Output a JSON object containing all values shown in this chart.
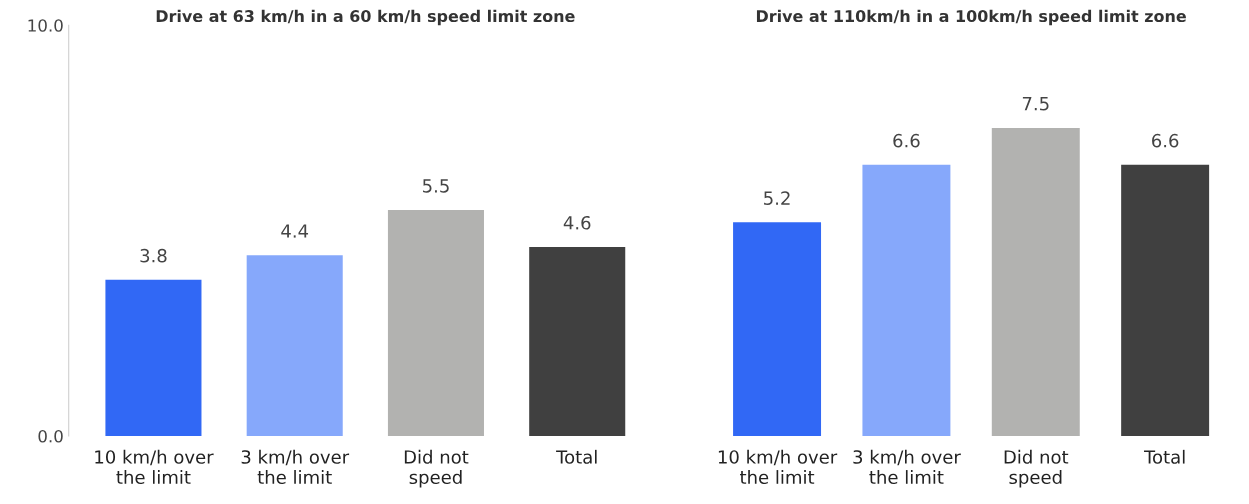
{
  "chart_data": [
    {
      "type": "bar",
      "title": "Drive at 63 km/h in a 60 km/h speed limit zone",
      "categories": [
        "10 km/h over\nthe limit",
        "3 km/h over\nthe limit",
        "Did not\nspeed",
        "Total"
      ],
      "values": [
        3.8,
        4.4,
        5.5,
        4.6
      ],
      "colors": [
        "#3168f5",
        "#86a8fb",
        "#b2b2b0",
        "#404040"
      ],
      "ylim": [
        0,
        10
      ],
      "yticks": [
        {
          "value": 0,
          "label": "0.0"
        },
        {
          "value": 10,
          "label": "10.0"
        }
      ],
      "data_labels": true,
      "grid": false,
      "legend": false
    },
    {
      "type": "bar",
      "title": "Drive at 110km/h in a 100km/h speed limit zone",
      "categories": [
        "10 km/h over\nthe limit",
        "3 km/h over\nthe limit",
        "Did not\nspeed",
        "Total"
      ],
      "values": [
        5.2,
        6.6,
        7.5,
        6.6
      ],
      "colors": [
        "#3168f5",
        "#86a8fb",
        "#b2b2b0",
        "#404040"
      ],
      "ylim": [
        0,
        10
      ],
      "tick_labels": "x",
      "data_labels": true,
      "grid": false,
      "legend": false
    }
  ]
}
